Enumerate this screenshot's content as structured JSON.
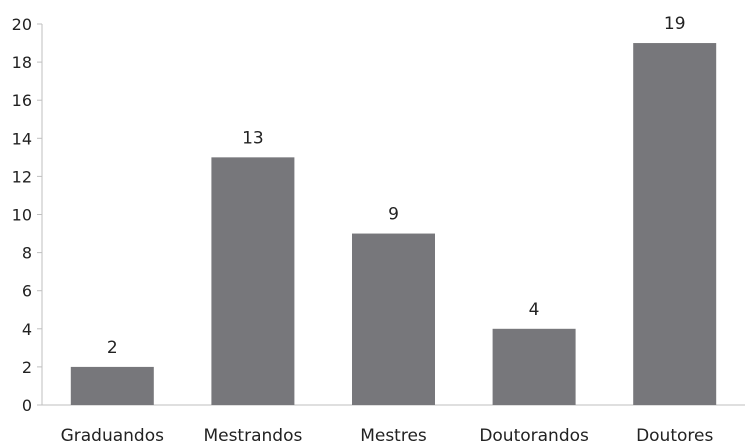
{
  "chart_data": {
    "type": "bar",
    "title": "",
    "xlabel": "",
    "ylabel": "",
    "categories": [
      "Graduandos",
      "Mestrandos",
      "Mestres",
      "Doutorandos",
      "Doutores"
    ],
    "values": [
      2,
      13,
      9,
      4,
      19
    ],
    "ylim": [
      0,
      20
    ],
    "yticks": [
      0,
      2,
      4,
      6,
      8,
      10,
      12,
      14,
      16,
      18,
      20
    ],
    "data_labels": [
      "2",
      "13",
      "9",
      "4",
      "19"
    ],
    "bar_color": "#77777b",
    "grid": false,
    "legend": "none"
  }
}
